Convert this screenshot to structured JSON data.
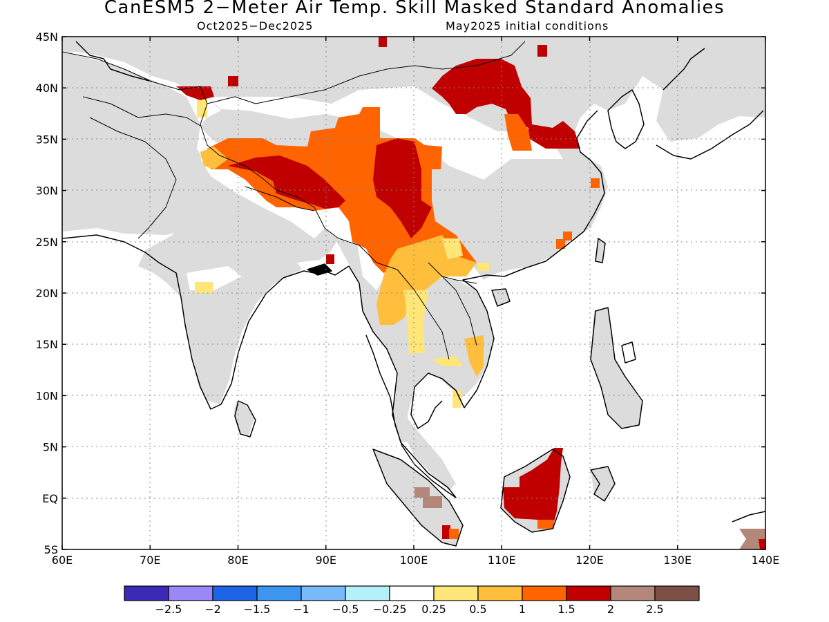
{
  "title": "CanESM5 2−Meter Air Temp. Skill Masked Standard Anomalies",
  "subtitle_left": "Oct2025−Dec2025",
  "subtitle_right": "May2025 initial conditions",
  "map": {
    "extent": {
      "lon": [
        60,
        140
      ],
      "lat": [
        -5,
        45
      ]
    },
    "lon_ticks": [
      {
        "v": 60,
        "label": "60E"
      },
      {
        "v": 70,
        "label": "70E"
      },
      {
        "v": 80,
        "label": "80E"
      },
      {
        "v": 90,
        "label": "90E"
      },
      {
        "v": 100,
        "label": "100E"
      },
      {
        "v": 110,
        "label": "110E"
      },
      {
        "v": 120,
        "label": "120E"
      },
      {
        "v": 130,
        "label": "130E"
      },
      {
        "v": 140,
        "label": "140E"
      }
    ],
    "lat_ticks": [
      {
        "v": 45,
        "label": "45N"
      },
      {
        "v": 40,
        "label": "40N"
      },
      {
        "v": 35,
        "label": "35N"
      },
      {
        "v": 30,
        "label": "30N"
      },
      {
        "v": 25,
        "label": "25N"
      },
      {
        "v": 20,
        "label": "20N"
      },
      {
        "v": 15,
        "label": "15N"
      },
      {
        "v": 10,
        "label": "10N"
      },
      {
        "v": 5,
        "label": "5N"
      },
      {
        "v": 0,
        "label": "EQ"
      },
      {
        "v": -5,
        "label": "5S"
      }
    ],
    "gridlines": "dotted",
    "masked_land_color": "#dcdcdc",
    "coast_color": "#000000"
  },
  "colorbar": {
    "colors": [
      "#3c2ab7",
      "#9b87f5",
      "#1e64e6",
      "#3c96f0",
      "#78b9fa",
      "#b4f0fa",
      "#ffffff",
      "#ffe678",
      "#ffbe3c",
      "#ff6400",
      "#c00000",
      "#b4877b",
      "#7d5046"
    ],
    "labels": [
      "−2.5",
      "−2",
      "−1.5",
      "−1",
      "−0.5",
      "−0.25",
      "0.25",
      "0.5",
      "1",
      "1.5",
      "2",
      "2.5"
    ]
  }
}
